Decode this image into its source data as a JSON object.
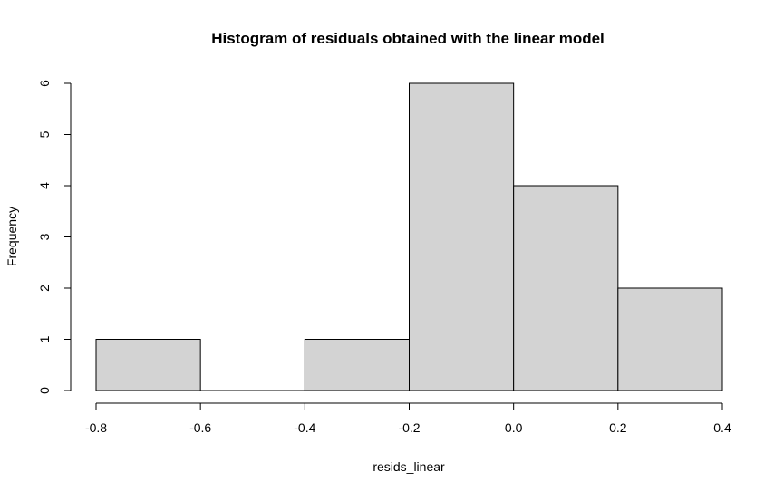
{
  "chart_data": {
    "type": "bar",
    "title": "Histogram of residuals obtained with the linear model",
    "xlabel": "resids_linear",
    "ylabel": "Frequency",
    "bins": [
      {
        "x0": -0.8,
        "x1": -0.6,
        "count": 1
      },
      {
        "x0": -0.6,
        "x1": -0.4,
        "count": 0
      },
      {
        "x0": -0.4,
        "x1": -0.2,
        "count": 1
      },
      {
        "x0": -0.2,
        "x1": 0.0,
        "count": 6
      },
      {
        "x0": 0.0,
        "x1": 0.2,
        "count": 4
      },
      {
        "x0": 0.2,
        "x1": 0.4,
        "count": 2
      }
    ],
    "xlim": [
      -0.8,
      0.4
    ],
    "ylim": [
      0,
      6
    ],
    "x_ticks": [
      -0.8,
      -0.6,
      -0.4,
      -0.2,
      0.0,
      0.2,
      0.4
    ],
    "x_tick_labels": [
      "-0.8",
      "-0.6",
      "-0.4",
      "-0.2",
      "0.0",
      "0.2",
      "0.4"
    ],
    "y_ticks": [
      0,
      1,
      2,
      3,
      4,
      5,
      6
    ],
    "y_tick_labels": [
      "0",
      "1",
      "2",
      "3",
      "4",
      "5",
      "6"
    ],
    "grid": false,
    "bar_color": "#d3d3d3",
    "bar_border_color": "#000000"
  }
}
